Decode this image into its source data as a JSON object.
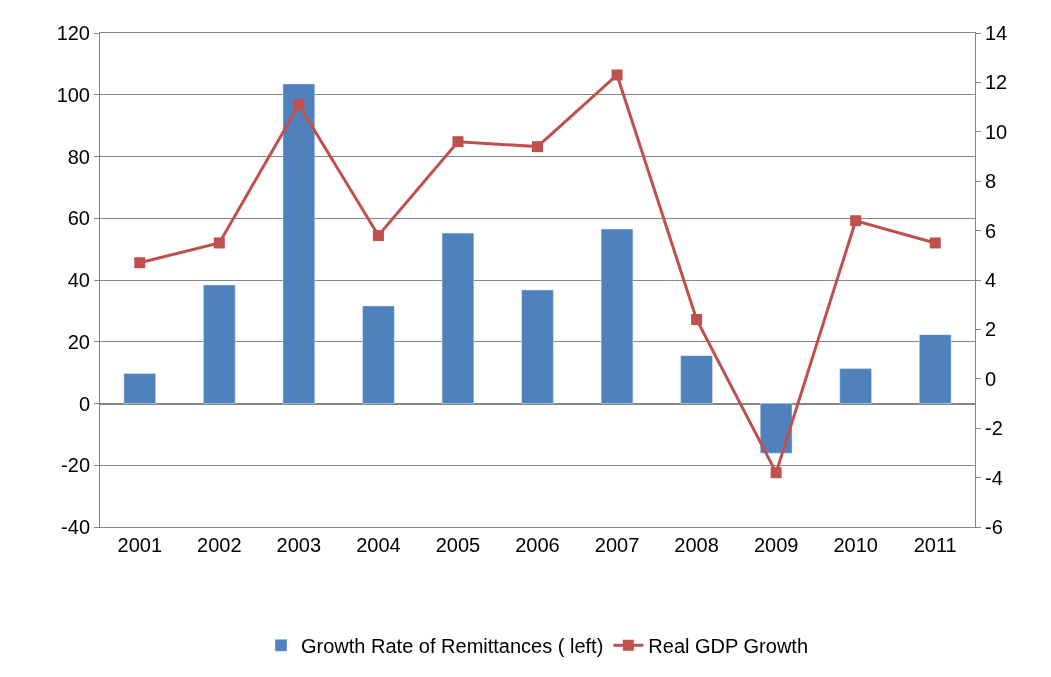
{
  "chart_data": {
    "type": "bar",
    "categories": [
      "2001",
      "2002",
      "2003",
      "2004",
      "2005",
      "2006",
      "2007",
      "2008",
      "2009",
      "2010",
      "2011"
    ],
    "series": [
      {
        "name": "Growth Rate of Remittances ( left)",
        "type": "bar",
        "color": "#4f81bd",
        "values": [
          9.7,
          38.4,
          103.5,
          31.6,
          55.2,
          36.8,
          56.5,
          15.5,
          -16.1,
          11.3,
          22.3
        ]
      },
      {
        "name": "Real GDP Growth",
        "type": "line",
        "axis": "y2",
        "color": "#c0504d",
        "marker": "square",
        "values": [
          4.7,
          5.5,
          11.1,
          5.8,
          9.6,
          9.4,
          12.3,
          2.4,
          -3.8,
          6.4,
          5.5
        ]
      }
    ],
    "ylim": [
      -40,
      120
    ],
    "yticks": [
      -40,
      -20,
      0,
      20,
      40,
      60,
      80,
      100,
      120
    ],
    "y2lim": [
      -6,
      14
    ],
    "y2ticks": [
      -6,
      -4,
      -2,
      0,
      2,
      4,
      6,
      8,
      10,
      12,
      14
    ],
    "grid": "y",
    "legend": "bottom"
  }
}
